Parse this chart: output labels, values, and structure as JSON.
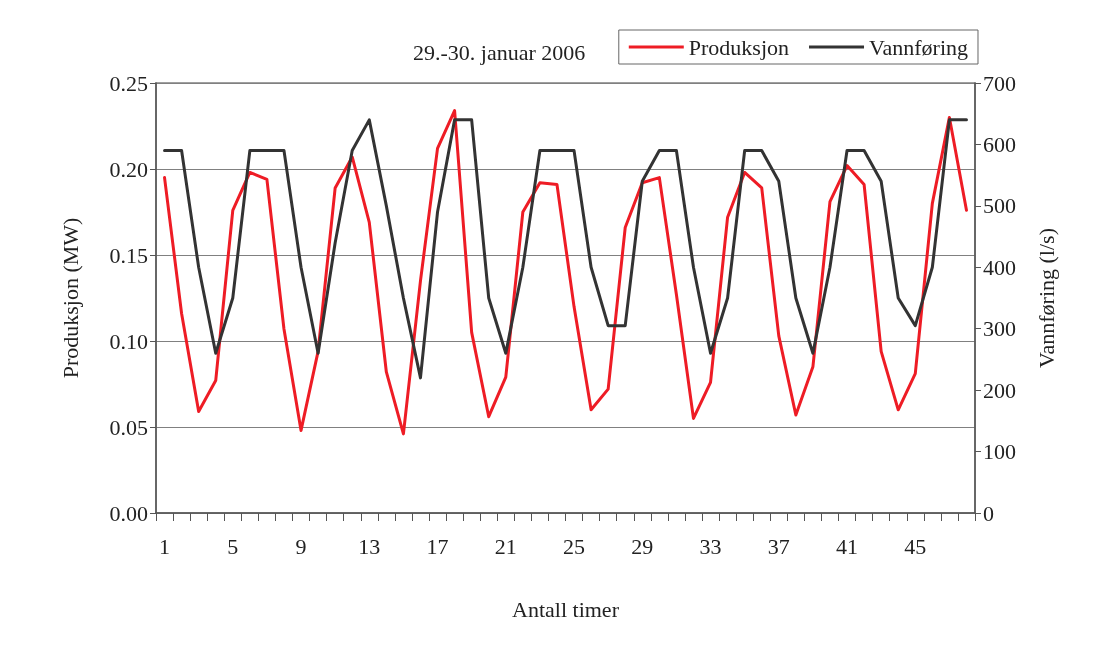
{
  "chart_data": {
    "type": "line",
    "title": "29.-30. januar 2006",
    "xlabel": "Antall timer",
    "ylabel": "Produksjon (MW)",
    "y2label": "Vannføring (l/s)",
    "categories": [
      "1",
      null,
      null,
      null,
      "5",
      null,
      null,
      null,
      "9",
      null,
      null,
      null,
      "13",
      null,
      null,
      null,
      "17",
      null,
      null,
      null,
      "21",
      null,
      null,
      null,
      "25",
      null,
      null,
      null,
      "29",
      null,
      null,
      null,
      "33",
      null,
      null,
      null,
      "37",
      null,
      null,
      null,
      "41",
      null,
      null,
      null,
      "45",
      null,
      null,
      null
    ],
    "series": [
      {
        "name": "Produksjon",
        "color": "#ee1c25",
        "values": [
          0.195,
          0.116,
          0.059,
          0.077,
          0.176,
          0.198,
          0.194,
          0.107,
          0.048,
          0.094,
          0.189,
          0.207,
          0.169,
          0.082,
          0.046,
          0.135,
          0.212,
          0.234,
          0.105,
          0.056,
          0.079,
          0.175,
          0.192,
          0.191,
          0.12,
          0.06,
          0.072,
          0.166,
          0.192,
          0.195,
          0.127,
          0.055,
          0.076,
          0.172,
          0.198,
          0.189,
          0.103,
          0.057,
          0.085,
          0.181,
          0.202,
          0.191,
          0.094,
          0.06,
          0.081,
          0.18,
          0.23,
          0.176
        ]
      },
      {
        "name": "Vannføring",
        "color": "#333333",
        "axis": "y2",
        "values": [
          590,
          590,
          400,
          260,
          350,
          590,
          590,
          590,
          400,
          260,
          440,
          590,
          640,
          500,
          350,
          220,
          490,
          640,
          640,
          350,
          260,
          400,
          590,
          590,
          590,
          400,
          305,
          305,
          540,
          590,
          590,
          400,
          260,
          350,
          590,
          590,
          540,
          350,
          260,
          400,
          590,
          590,
          540,
          350,
          305,
          400,
          640,
          640
        ]
      }
    ],
    "ylim": [
      0,
      0.25
    ],
    "yticks": [
      {
        "value": 0,
        "label": "0.00"
      },
      0.05,
      {
        "value": 0.1,
        "label": "0.10"
      },
      0.15,
      {
        "value": 0.2,
        "label": "0.20"
      },
      0.25
    ],
    "y2lim": [
      0,
      700
    ],
    "y2ticks": [
      0,
      100,
      200,
      300,
      400,
      500,
      600,
      700
    ],
    "grid": "y",
    "legend": "top right",
    "marker": "none",
    "line_style": "solid"
  }
}
